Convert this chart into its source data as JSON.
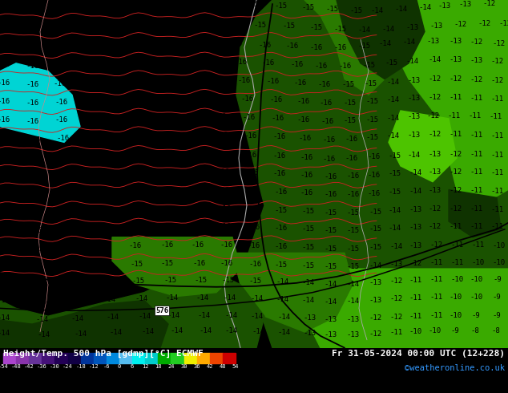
{
  "title_left": "Height/Temp. 500 hPa [gdmp][°C] ECMWF",
  "title_right": "Fr 31-05-2024 00:00 UTC (12+228)",
  "credit": "©weatheronline.co.uk",
  "colorbar_tick_labels": [
    "-54",
    "-48",
    "-42",
    "-36",
    "-30",
    "-24",
    "-18",
    "-12",
    "-6",
    "0",
    "6",
    "12",
    "18",
    "24",
    "30",
    "36",
    "42",
    "48",
    "54"
  ],
  "bg_cyan": "#00d4d4",
  "bg_dark_green": "#1a5200",
  "bg_mid_green": "#2a7a00",
  "bg_light_green": "#3aaa00",
  "bg_lighter_green": "#4dc400",
  "bg_very_dark_green": "#0f3300",
  "contour_label_color": "#000000",
  "red_line_color": "#cc0000",
  "white_line_color": "#cccccc",
  "black_line_color": "#000000",
  "bottom_bg": "#000000",
  "bottom_text_color": "#ffffff",
  "credit_color": "#3399ff"
}
